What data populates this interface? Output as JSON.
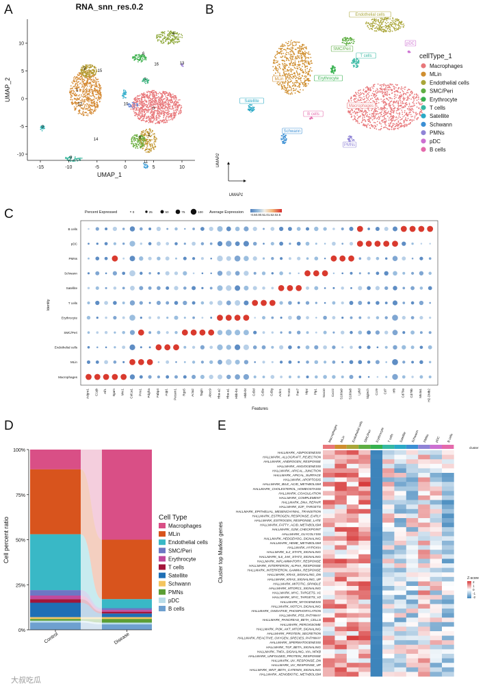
{
  "panel_letters": [
    "A",
    "B",
    "C",
    "D",
    "E"
  ],
  "panelA": {
    "title": "RNA_snn_res.0.2",
    "xlabel": "UMAP_1",
    "ylabel": "UMAP_2",
    "xticks": [
      -15,
      -10,
      -5,
      0,
      5,
      10
    ],
    "yticks": [
      -10,
      -5,
      0,
      5,
      10
    ],
    "cluster_labels": [
      "0",
      "1",
      "2",
      "3",
      "4",
      "5",
      "6",
      "7",
      "8",
      "9",
      "10",
      "11",
      "12",
      "13",
      "14",
      "15",
      "16"
    ]
  },
  "panelB": {
    "xlabel": "UMAP1",
    "ylabel": "UMAP2",
    "legend_title": "cellType_1",
    "celltypes": [
      "Macrophages",
      "MLin",
      "Endothelial cells",
      "SMC/Peri",
      "Erythrocyte",
      "T cells",
      "Satellite",
      "Schwann",
      "PMNs",
      "pDC",
      "B cells"
    ],
    "colors": [
      "#e8777a",
      "#cf8e2f",
      "#aaa639",
      "#5fae43",
      "#36b14f",
      "#36b8a2",
      "#2ba9c6",
      "#3b8fd4",
      "#8f83d6",
      "#cc6fd1",
      "#e46aab"
    ]
  },
  "panelC": {
    "legend_pct_title": "Percent Expressed",
    "pct_values": [
      "0",
      "25",
      "50",
      "75",
      "100"
    ],
    "legend_avg_title": "Average Expression",
    "avg_ticks": "-0.50.00.51.01.52.02.5",
    "ylabel": "Identity",
    "xlabel": "Features",
    "rows": [
      "B cells",
      "pDC",
      "PMNs",
      "Schwann",
      "Satellite",
      "T cells",
      "Erythrocyte",
      "SMC/Peri",
      "Endothelial cells",
      "MLin",
      "Macrophages"
    ],
    "genes": [
      "Adgre1",
      "C1qb",
      "Aif1",
      "Itgam",
      "Mrc1",
      "Col1a1",
      "Prrx1",
      "Pdgfra",
      "Fabp4",
      "Aqp1",
      "Pecam1",
      "Rgs5",
      "Acta2",
      "Tagln",
      "Abcc9",
      "Hba-a2",
      "Hba-a1",
      "Hbb-bs",
      "Hbb-bt",
      "Cd3d",
      "Cd3e",
      "Cd3g",
      "Ackr1",
      "Tnnt3",
      "Pax7",
      "Mpz",
      "Plp1",
      "Sox10",
      "Cxcr2",
      "S100a9",
      "S100a8",
      "Ly6d",
      "Siglech",
      "Ccr9",
      "Cd7",
      "Irf8",
      "Cd79a",
      "Cd79b",
      "Ms4a1",
      "H2-DMb2"
    ]
  },
  "panelD": {
    "ylabel": "Cell percent ratio",
    "legend_title": "Cell Type",
    "yticks": [
      "0%",
      "25%",
      "50%",
      "75%",
      "100%"
    ],
    "groups": [
      "Control",
      "Disease"
    ],
    "celltypes": [
      "Macrophages",
      "MLin",
      "Endothelial cells",
      "SMC/Peri",
      "Erythrocyte",
      "T cells",
      "Satellite",
      "Schwann",
      "PMNs",
      "pDC",
      "B cells"
    ],
    "colors": [
      "#d94f86",
      "#d8541d",
      "#39b8c6",
      "#6d77c4",
      "#c14a9c",
      "#a3153a",
      "#1f6fb5",
      "#f4c55f",
      "#5b9e33",
      "#b9dde9",
      "#6ea0cf"
    ]
  },
  "panelE": {
    "ylabel": "Cluster top Marker genes",
    "legend_title": "Z-score",
    "z_ticks": [
      "2",
      "1",
      "0",
      "-1",
      "-2"
    ],
    "annotation_label": "cluster",
    "clusters": [
      "Macrophages",
      "MLin",
      "Endothelial cells",
      "SMC/Peri",
      "Erythrocyte",
      "T cells",
      "Satellite",
      "Schwann",
      "PMNs",
      "pDC",
      "B cells"
    ],
    "cluster_colors": [
      "#e8777a",
      "#cf8e2f",
      "#aaa639",
      "#5fae43",
      "#36b14f",
      "#36b8a2",
      "#2ba9c6",
      "#3b8fd4",
      "#8f83d6",
      "#cc6fd1",
      "#e46aab"
    ],
    "pathways": [
      "HALLMARK_ADIPOGENESIS",
      "HALLMARK_ALLOGRAFT_REJECTION",
      "HALLMARK_ANDROGEN_RESPONSE",
      "HALLMARK_ANGIOGENESIS",
      "HALLMARK_APICAL_JUNCTION",
      "HALLMARK_APICAL_SURFACE",
      "HALLMARK_APOPTOSIS",
      "HALLMARK_BILE_ACID_METABOLISM",
      "HALLMARK_CHOLESTEROL_HOMEOSTASIS",
      "HALLMARK_COAGULATION",
      "HALLMARK_COMPLEMENT",
      "HALLMARK_DNA_REPAIR",
      "HALLMARK_E2F_TARGETS",
      "HALLMARK_EPITHELIAL_MESENCHYMAL_TRANSITION",
      "HALLMARK_ESTROGEN_RESPONSE_EARLY",
      "HALLMARK_ESTROGEN_RESPONSE_LATE",
      "HALLMARK_FATTY_ACID_METABOLISM",
      "HALLMARK_G2M_CHECKPOINT",
      "HALLMARK_GLYCOLYSIS",
      "HALLMARK_HEDGEHOG_SIGNALING",
      "HALLMARK_HEME_METABOLISM",
      "HALLMARK_HYPOXIA",
      "HALLMARK_IL2_STAT5_SIGNALING",
      "HALLMARK_IL6_JAK_STAT3_SIGNALING",
      "HALLMARK_INFLAMMATORY_RESPONSE",
      "HALLMARK_INTERFERON_ALPHA_RESPONSE",
      "HALLMARK_INTERFERON_GAMMA_RESPONSE",
      "HALLMARK_KRAS_SIGNALING_DN",
      "HALLMARK_KRAS_SIGNALING_UP",
      "HALLMARK_MITOTIC_SPINDLE",
      "HALLMARK_MTORC1_SIGNALING",
      "HALLMARK_MYC_TARGETS_V1",
      "HALLMARK_MYC_TARGETS_V2",
      "HALLMARK_MYOGENESIS",
      "HALLMARK_NOTCH_SIGNALING",
      "HALLMARK_OXIDATIVE_PHOSPHORYLATION",
      "HALLMARK_P53_PATHWAY",
      "HALLMARK_PANCREAS_BETA_CELLS",
      "HALLMARK_PEROXISOME",
      "HALLMARK_PI3K_AKT_MTOR_SIGNALING",
      "HALLMARK_PROTEIN_SECRETION",
      "HALLMARK_REACTIVE_OXYGEN_SPECIES_PATHWAY",
      "HALLMARK_SPERMATOGENESIS",
      "HALLMARK_TGF_BETA_SIGNALING",
      "HALLMARK_TNFA_SIGNALING_VIA_NFKB",
      "HALLMARK_UNFOLDED_PROTEIN_RESPONSE",
      "HALLMARK_UV_RESPONSE_DN",
      "HALLMARK_UV_RESPONSE_UP",
      "HALLMARK_WNT_BETA_CATENIN_SIGNALING",
      "HALLMARK_XENOBIOTIC_METABOLISM"
    ]
  },
  "watermark": "大叔吃瓜",
  "chart_data": [
    {
      "type": "bar",
      "title": "",
      "ylabel": "Cell percent ratio",
      "categories": [
        "Control",
        "Disease"
      ],
      "ylim": [
        0,
        100
      ],
      "series": [
        {
          "name": "Macrophages",
          "values": [
            11,
            50
          ]
        },
        {
          "name": "MLin",
          "values": [
            36,
            33
          ]
        },
        {
          "name": "Endothelial cells",
          "values": [
            31,
            5
          ]
        },
        {
          "name": "SMC/Peri",
          "values": [
            3,
            1
          ]
        },
        {
          "name": "Erythrocyte",
          "values": [
            2,
            1
          ]
        },
        {
          "name": "T cells",
          "values": [
            2,
            1
          ]
        },
        {
          "name": "Satellite",
          "values": [
            8,
            2
          ]
        },
        {
          "name": "Schwann",
          "values": [
            1,
            1
          ]
        },
        {
          "name": "PMNs",
          "values": [
            1,
            2
          ]
        },
        {
          "name": "pDC",
          "values": [
            1,
            1
          ]
        },
        {
          "name": "B cells",
          "values": [
            4,
            3
          ]
        }
      ]
    },
    {
      "type": "heatmap",
      "ylabel": "Cluster top Marker genes",
      "zrange": [
        -2,
        2
      ]
    }
  ]
}
